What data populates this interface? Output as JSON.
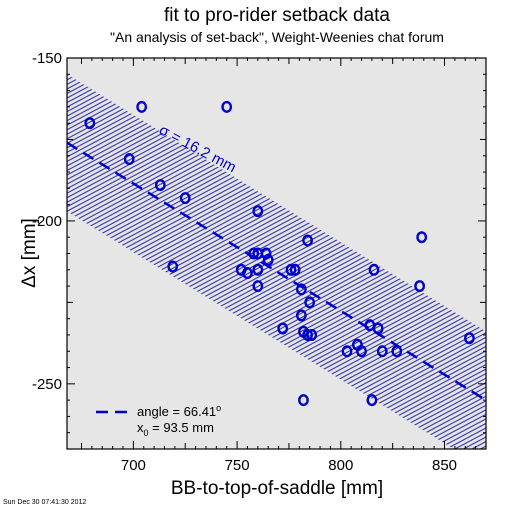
{
  "chart_data": {
    "type": "scatter",
    "title": "fit to pro-rider setback data",
    "subtitle": "\"An analysis of set-back\", Weight-Weenies chat forum",
    "xlabel": "BB-to-top-of-saddle [mm]",
    "ylabel": "Δx [mm]",
    "xlim": [
      668,
      870
    ],
    "ylim": [
      -270,
      -150
    ],
    "xticks": [
      700,
      750,
      800,
      850
    ],
    "yticks": [
      -250,
      -200,
      -150
    ],
    "grid": false,
    "points": [
      {
        "x": 679,
        "y": -170
      },
      {
        "x": 698,
        "y": -181
      },
      {
        "x": 704,
        "y": -165
      },
      {
        "x": 713,
        "y": -189
      },
      {
        "x": 719,
        "y": -214
      },
      {
        "x": 725,
        "y": -193
      },
      {
        "x": 745,
        "y": -165
      },
      {
        "x": 752,
        "y": -215
      },
      {
        "x": 755,
        "y": -216
      },
      {
        "x": 758,
        "y": -210
      },
      {
        "x": 760,
        "y": -197
      },
      {
        "x": 760,
        "y": -210
      },
      {
        "x": 760,
        "y": -215
      },
      {
        "x": 760,
        "y": -220
      },
      {
        "x": 764,
        "y": -210
      },
      {
        "x": 765,
        "y": -212
      },
      {
        "x": 772,
        "y": -233
      },
      {
        "x": 776,
        "y": -215
      },
      {
        "x": 778,
        "y": -215
      },
      {
        "x": 781,
        "y": -221
      },
      {
        "x": 781,
        "y": -229
      },
      {
        "x": 782,
        "y": -234
      },
      {
        "x": 782,
        "y": -255
      },
      {
        "x": 784,
        "y": -206
      },
      {
        "x": 784,
        "y": -235
      },
      {
        "x": 785,
        "y": -225
      },
      {
        "x": 786,
        "y": -235
      },
      {
        "x": 803,
        "y": -240
      },
      {
        "x": 808,
        "y": -238
      },
      {
        "x": 810,
        "y": -240
      },
      {
        "x": 814,
        "y": -232
      },
      {
        "x": 815,
        "y": -255
      },
      {
        "x": 816,
        "y": -215
      },
      {
        "x": 818,
        "y": -233
      },
      {
        "x": 820,
        "y": -240
      },
      {
        "x": 827,
        "y": -240
      },
      {
        "x": 838,
        "y": -220
      },
      {
        "x": 839,
        "y": -205
      },
      {
        "x": 862,
        "y": -236
      }
    ],
    "fit_line": {
      "x": [
        668,
        870
      ],
      "y": [
        -176,
        -255
      ]
    },
    "band_sigma": 16.2,
    "band_label": "σ = 16.2 mm",
    "legend": {
      "placement": "bottom-left",
      "angle_label": "angle = 66.41",
      "angle_unit": "o",
      "x0_prefix": "x",
      "x0_sub": "0",
      "x0_value": " = 93.5 mm"
    },
    "colors": {
      "marker": "#0000cc",
      "fit": "#0000cc",
      "band_hatch": "#3333aa",
      "plot_bg": "#e6e6e6"
    }
  },
  "timestamp": "Sun Dec 30 07:41:30 2012"
}
